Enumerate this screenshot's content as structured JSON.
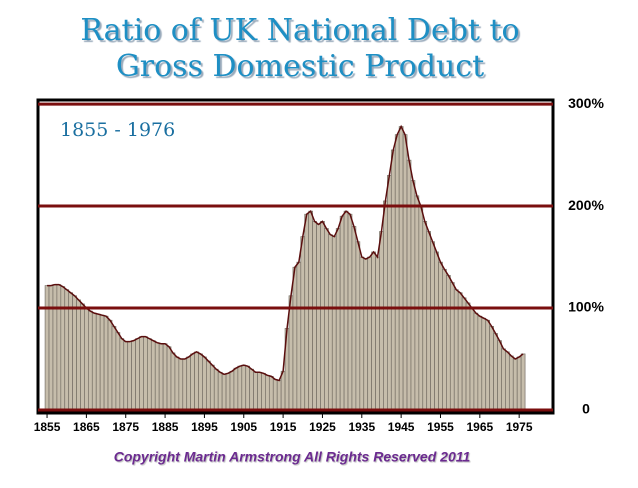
{
  "chart_data": {
    "type": "area",
    "title": [
      "Ratio of UK National Debt to",
      "Gross Domestic Product"
    ],
    "annotation": "1855 - 1976",
    "footer": "Copyright Martin Armstrong All Rights Reserved 2011",
    "x": [
      1855,
      1856,
      1857,
      1858,
      1859,
      1860,
      1861,
      1862,
      1863,
      1864,
      1865,
      1866,
      1867,
      1868,
      1869,
      1870,
      1871,
      1872,
      1873,
      1874,
      1875,
      1876,
      1877,
      1878,
      1879,
      1880,
      1881,
      1882,
      1883,
      1884,
      1885,
      1886,
      1887,
      1888,
      1889,
      1890,
      1891,
      1892,
      1893,
      1894,
      1895,
      1896,
      1897,
      1898,
      1899,
      1900,
      1901,
      1902,
      1903,
      1904,
      1905,
      1906,
      1907,
      1908,
      1909,
      1910,
      1911,
      1912,
      1913,
      1914,
      1915,
      1916,
      1917,
      1918,
      1919,
      1920,
      1921,
      1922,
      1923,
      1924,
      1925,
      1926,
      1927,
      1928,
      1929,
      1930,
      1931,
      1932,
      1933,
      1934,
      1935,
      1936,
      1937,
      1938,
      1939,
      1940,
      1941,
      1942,
      1943,
      1944,
      1945,
      1946,
      1947,
      1948,
      1949,
      1950,
      1951,
      1952,
      1953,
      1954,
      1955,
      1956,
      1957,
      1958,
      1959,
      1960,
      1961,
      1962,
      1963,
      1964,
      1965,
      1966,
      1967,
      1968,
      1969,
      1970,
      1971,
      1972,
      1973,
      1974,
      1975,
      1976
    ],
    "values": [
      122,
      122,
      123,
      123,
      121,
      118,
      115,
      112,
      108,
      104,
      100,
      97,
      95,
      94,
      93,
      92,
      88,
      82,
      76,
      70,
      67,
      67,
      68,
      70,
      72,
      72,
      70,
      68,
      66,
      65,
      65,
      62,
      56,
      52,
      50,
      50,
      52,
      55,
      57,
      55,
      52,
      48,
      44,
      40,
      37,
      35,
      36,
      38,
      41,
      43,
      44,
      43,
      40,
      37,
      37,
      36,
      34,
      33,
      30,
      29,
      38,
      80,
      112,
      140,
      145,
      170,
      192,
      195,
      185,
      182,
      185,
      178,
      172,
      170,
      178,
      190,
      195,
      192,
      180,
      165,
      150,
      148,
      150,
      155,
      150,
      175,
      205,
      230,
      255,
      270,
      278,
      270,
      245,
      225,
      210,
      200,
      185,
      175,
      165,
      155,
      145,
      138,
      132,
      125,
      118,
      115,
      110,
      105,
      100,
      95,
      92,
      90,
      88,
      82,
      75,
      68,
      60,
      57,
      53,
      50,
      52,
      55
    ],
    "color": "#c6bdab",
    "line_color": "#5a0e0e",
    "grid_color": "#7a0e0e",
    "xlim": [
      1852.7,
      1983.6
    ],
    "xticks": [
      1855,
      1865,
      1875,
      1885,
      1895,
      1905,
      1915,
      1925,
      1935,
      1945,
      1955,
      1965,
      1975
    ],
    "ylim": [
      0,
      304
    ],
    "yticks": [
      0,
      {
        "value": 100,
        "label": "100%"
      },
      {
        "value": 200,
        "label": "200%"
      },
      {
        "value": 300,
        "label": "300%"
      }
    ],
    "grid": true
  }
}
